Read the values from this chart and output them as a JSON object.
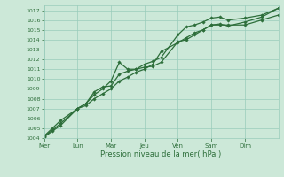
{
  "bg_color": "#cce8d8",
  "grid_color": "#99ccbb",
  "line_color": "#2d6e3a",
  "xlabel": "Pression niveau de la mer( hPa )",
  "ylim": [
    1004,
    1017.5
  ],
  "yticks": [
    1004,
    1005,
    1006,
    1007,
    1008,
    1009,
    1010,
    1011,
    1012,
    1013,
    1014,
    1015,
    1016,
    1017
  ],
  "day_labels": [
    "Mer",
    "Lun",
    "Mar",
    "Jeu",
    "Ven",
    "Sam",
    "Dim"
  ],
  "day_positions": [
    0,
    24,
    48,
    72,
    96,
    120,
    144
  ],
  "xlim": [
    0,
    168
  ],
  "series": [
    {
      "x": [
        0,
        6,
        12,
        24,
        30,
        36,
        42,
        48,
        54,
        60,
        66,
        72,
        78,
        84,
        96,
        102,
        108,
        114,
        120,
        126,
        132,
        144,
        156,
        168
      ],
      "y": [
        1004.2,
        1005.0,
        1005.8,
        1007.0,
        1007.5,
        1008.7,
        1009.2,
        1009.3,
        1010.5,
        1010.8,
        1011.0,
        1011.5,
        1011.8,
        1012.2,
        1014.5,
        1015.3,
        1015.5,
        1015.8,
        1016.2,
        1016.3,
        1016.0,
        1016.2,
        1016.5,
        1017.2
      ]
    },
    {
      "x": [
        0,
        6,
        12,
        24,
        30,
        36,
        42,
        48,
        54,
        60,
        66,
        72,
        78,
        84,
        96,
        102,
        108,
        114,
        120,
        126,
        132,
        144,
        156,
        168
      ],
      "y": [
        1004.2,
        1004.8,
        1005.5,
        1007.0,
        1007.5,
        1008.4,
        1009.0,
        1009.8,
        1011.7,
        1011.0,
        1011.0,
        1011.2,
        1011.3,
        1011.7,
        1013.8,
        1014.0,
        1014.5,
        1015.0,
        1015.5,
        1015.5,
        1015.5,
        1015.5,
        1016.0,
        1016.5
      ]
    },
    {
      "x": [
        0,
        6,
        12,
        24,
        30,
        36,
        42,
        48,
        54,
        60,
        66,
        72,
        78,
        84,
        96,
        102,
        108,
        114,
        120,
        126,
        132,
        144,
        156,
        168
      ],
      "y": [
        1004.1,
        1004.7,
        1005.3,
        1007.0,
        1007.3,
        1008.0,
        1008.5,
        1009.0,
        1009.8,
        1010.2,
        1010.7,
        1011.0,
        1011.5,
        1012.8,
        1013.7,
        1014.2,
        1014.7,
        1015.0,
        1015.5,
        1015.6,
        1015.4,
        1015.8,
        1016.3,
        1017.2
      ]
    }
  ]
}
